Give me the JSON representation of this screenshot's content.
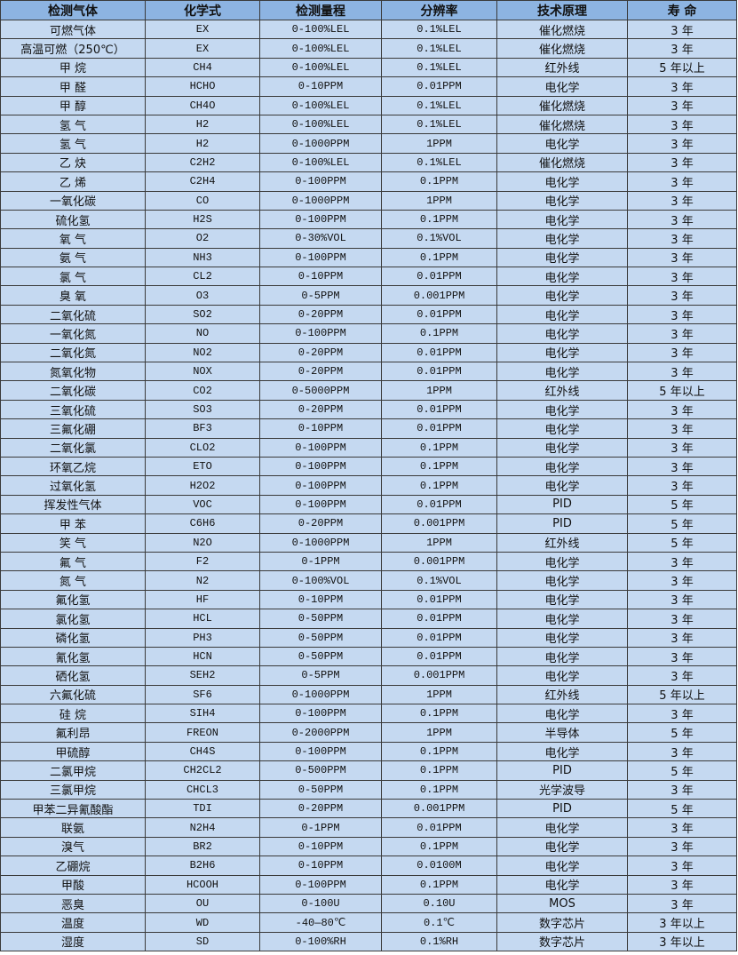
{
  "headers": [
    "检测气体",
    "化学式",
    "检测量程",
    "分辨率",
    "技术原理",
    "寿 命"
  ],
  "rows": [
    [
      "可燃气体",
      "EX",
      "0-100%LEL",
      "0.1%LEL",
      "催化燃烧",
      "3 年"
    ],
    [
      "高温可燃（250℃）",
      "EX",
      "0-100%LEL",
      "0.1%LEL",
      "催化燃烧",
      "3 年"
    ],
    [
      "甲 烷",
      "CH4",
      "0-100%LEL",
      "0.1%LEL",
      "红外线",
      "5 年以上"
    ],
    [
      "甲 醛",
      "HCHO",
      "0-10PPM",
      "0.01PPM",
      "电化学",
      "3 年"
    ],
    [
      "甲 醇",
      "CH4O",
      "0-100%LEL",
      "0.1%LEL",
      "催化燃烧",
      "3 年"
    ],
    [
      "氢 气",
      "H2",
      "0-100%LEL",
      "0.1%LEL",
      "催化燃烧",
      "3 年"
    ],
    [
      "氢 气",
      "H2",
      "0-1000PPM",
      "1PPM",
      "电化学",
      "3 年"
    ],
    [
      "乙 炔",
      "C2H2",
      "0-100%LEL",
      "0.1%LEL",
      "催化燃烧",
      "3 年"
    ],
    [
      "乙 烯",
      "C2H4",
      "0-100PPM",
      "0.1PPM",
      "电化学",
      "3 年"
    ],
    [
      "一氧化碳",
      "CO",
      "0-1000PPM",
      "1PPM",
      "电化学",
      "3 年"
    ],
    [
      "硫化氢",
      "H2S",
      "0-100PPM",
      "0.1PPM",
      "电化学",
      "3 年"
    ],
    [
      "氧 气",
      "O2",
      "0-30%VOL",
      "0.1%VOL",
      "电化学",
      "3 年"
    ],
    [
      "氨 气",
      "NH3",
      "0-100PPM",
      "0.1PPM",
      "电化学",
      "3 年"
    ],
    [
      "氯 气",
      "CL2",
      "0-10PPM",
      "0.01PPM",
      "电化学",
      "3 年"
    ],
    [
      "臭 氧",
      "O3",
      "0-5PPM",
      "0.001PPM",
      "电化学",
      "3 年"
    ],
    [
      "二氧化硫",
      "SO2",
      "0-20PPM",
      "0.01PPM",
      "电化学",
      "3 年"
    ],
    [
      "一氧化氮",
      "NO",
      "0-100PPM",
      "0.1PPM",
      "电化学",
      "3 年"
    ],
    [
      "二氧化氮",
      "NO2",
      "0-20PPM",
      "0.01PPM",
      "电化学",
      "3 年"
    ],
    [
      "氮氧化物",
      "NOX",
      "0-20PPM",
      "0.01PPM",
      "电化学",
      "3 年"
    ],
    [
      "二氧化碳",
      "CO2",
      "0-5000PPM",
      "1PPM",
      "红外线",
      "5 年以上"
    ],
    [
      "三氧化硫",
      "SO3",
      "0-20PPM",
      "0.01PPM",
      "电化学",
      "3 年"
    ],
    [
      "三氟化硼",
      "BF3",
      "0-10PPM",
      "0.01PPM",
      "电化学",
      "3 年"
    ],
    [
      "二氧化氯",
      "CLO2",
      "0-100PPM",
      "0.1PPM",
      "电化学",
      "3 年"
    ],
    [
      "环氧乙烷",
      "ETO",
      "0-100PPM",
      "0.1PPM",
      "电化学",
      "3 年"
    ],
    [
      "过氧化氢",
      "H2O2",
      "0-100PPM",
      "0.1PPM",
      "电化学",
      "3 年"
    ],
    [
      "挥发性气体",
      "VOC",
      "0-100PPM",
      "0.01PPM",
      "PID",
      "5 年"
    ],
    [
      "甲 苯",
      "C6H6",
      "0-20PPM",
      "0.001PPM",
      "PID",
      "5 年"
    ],
    [
      "笑 气",
      "N2O",
      "0-1000PPM",
      "1PPM",
      "红外线",
      "5 年"
    ],
    [
      "氟 气",
      "F2",
      "0-1PPM",
      "0.001PPM",
      "电化学",
      "3 年"
    ],
    [
      "氮 气",
      "N2",
      "0-100%VOL",
      "0.1%VOL",
      "电化学",
      "3 年"
    ],
    [
      "氟化氢",
      "HF",
      "0-10PPM",
      "0.01PPM",
      "电化学",
      "3 年"
    ],
    [
      "氯化氢",
      "HCL",
      "0-50PPM",
      "0.01PPM",
      "电化学",
      "3 年"
    ],
    [
      "磷化氢",
      "PH3",
      "0-50PPM",
      "0.01PPM",
      "电化学",
      "3 年"
    ],
    [
      "氰化氢",
      "HCN",
      "0-50PPM",
      "0.01PPM",
      "电化学",
      "3 年"
    ],
    [
      "硒化氢",
      "SEH2",
      "0-5PPM",
      "0.001PPM",
      "电化学",
      "3 年"
    ],
    [
      "六氟化硫",
      "SF6",
      "0-1000PPM",
      "1PPM",
      "红外线",
      "5 年以上"
    ],
    [
      "硅 烷",
      "SIH4",
      "0-100PPM",
      "0.1PPM",
      "电化学",
      "3 年"
    ],
    [
      "氟利昂",
      "FREON",
      "0-2000PPM",
      "1PPM",
      "半导体",
      "5 年"
    ],
    [
      "甲硫醇",
      "CH4S",
      "0-100PPM",
      "0.1PPM",
      "电化学",
      "3 年"
    ],
    [
      "二氯甲烷",
      "CH2CL2",
      "0-500PPM",
      "0.1PPM",
      "PID",
      "5 年"
    ],
    [
      "三氯甲烷",
      "CHCL3",
      "0-50PPM",
      "0.1PPM",
      "光学波导",
      "3 年"
    ],
    [
      "甲苯二异氰酸酯",
      "TDI",
      "0-20PPM",
      "0.001PPM",
      "PID",
      "5 年"
    ],
    [
      "联氨",
      "N2H4",
      "0-1PPM",
      "0.01PPM",
      "电化学",
      "3 年"
    ],
    [
      "溴气",
      "BR2",
      "0-10PPM",
      "0.1PPM",
      "电化学",
      "3 年"
    ],
    [
      "乙硼烷",
      "B2H6",
      "0-10PPM",
      "0.0100M",
      "电化学",
      "3 年"
    ],
    [
      "甲酸",
      "HCOOH",
      "0-100PPM",
      "0.1PPM",
      "电化学",
      "3 年"
    ],
    [
      "恶臭",
      "OU",
      "0-100U",
      "0.10U",
      "MOS",
      "3 年"
    ],
    [
      "温度",
      "WD",
      "-40—80℃",
      "0.1℃",
      "数字芯片",
      "3 年以上"
    ],
    [
      "湿度",
      "SD",
      "0-100%RH",
      "0.1%RH",
      "数字芯片",
      "3 年以上"
    ]
  ],
  "colors": {
    "header_bg": "#8db4e2",
    "row_bg": "#c5d9f1",
    "border": "#3a3a3a"
  }
}
